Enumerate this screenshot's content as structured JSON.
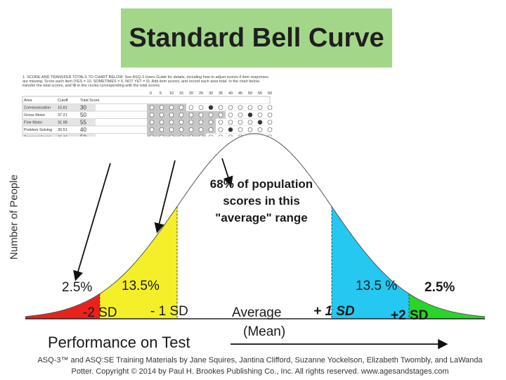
{
  "title": "Standard Bell Curve",
  "y_axis_label": "Number of People",
  "x_axis_label": "Performance on Test",
  "callout": "68% of population scores in this \"average\" range",
  "segments": {
    "left_tail_pct": "2.5%",
    "left_mid_pct": "13.5%",
    "right_mid_pct": "13.5 %",
    "right_tail_pct": "2.5%"
  },
  "sd_labels": {
    "minus2": "-2 SD",
    "minus1": "- 1 SD",
    "mean_line1": "Average",
    "mean_line2": "(Mean)",
    "plus1": "+ 1 SD",
    "plus2": "+2 SD"
  },
  "colors": {
    "title_bg": "#a4d68a",
    "left_tail": "#e8221c",
    "left_mid": "#f5ef2a",
    "center": "#ffffff",
    "right_mid": "#25c8f0",
    "right_tail": "#2ad52a"
  },
  "scoresheet": {
    "heading": "1. SCORE AND TRANSFER TOTALS TO CHART BELOW: See ASQ-3 Users Guide for details, including how to adjust scores if item responses are missing. Score each item (YES = 10, SOMETIMES = 5, NOT YET = 0). Add item scores, and record each area total. In the chart below, transfer the total scores, and fill in the circles corresponding with the total scores.",
    "columns": [
      "Area",
      "Cutoff",
      "Total Score"
    ],
    "scale": [
      "0",
      "5",
      "10",
      "15",
      "20",
      "25",
      "30",
      "35",
      "40",
      "45",
      "50",
      "55",
      "60"
    ],
    "rows": [
      {
        "area": "Communication",
        "cutoff": "15.81",
        "total": "30"
      },
      {
        "area": "Gross Motor",
        "cutoff": "37.21",
        "total": "50"
      },
      {
        "area": "Fine Motor",
        "cutoff": "31.98",
        "total": "55"
      },
      {
        "area": "Problem Solving",
        "cutoff": "30.51",
        "total": "40"
      },
      {
        "area": "Personal-Social",
        "cutoff": "26.43",
        "total": "50"
      }
    ]
  },
  "footer": "ASQ-3™ and ASQ:SE Training Materials by Jane Squires, Jantina Clifford, Suzanne Yockelson, Elizabeth Twombly, and LaWanda Potter. Copyright © 2014 by Paul H. Brookes Publishing Co., Inc. All rights reserved. www.agesandstages.com"
}
